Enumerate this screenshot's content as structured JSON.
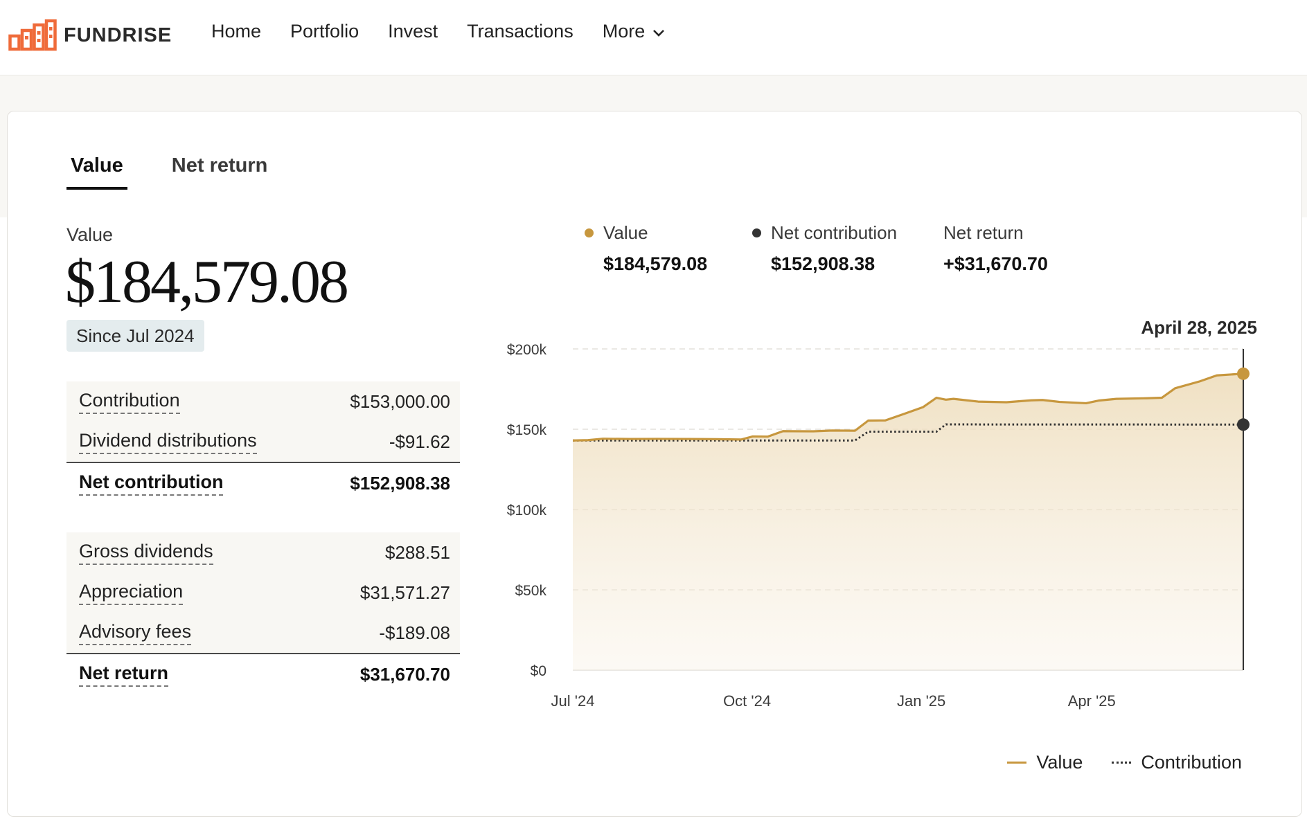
{
  "brand": {
    "name": "FUNDRISE",
    "accent": "#ef6b3a"
  },
  "nav": {
    "items": [
      "Home",
      "Portfolio",
      "Invest",
      "Transactions"
    ],
    "more_label": "More"
  },
  "tabs": [
    {
      "label": "Value",
      "active": true
    },
    {
      "label": "Net return",
      "active": false
    }
  ],
  "summary": {
    "label": "Value",
    "amount": "$184,579.08",
    "since": "Since Jul 2024"
  },
  "breakdown": {
    "contribution": {
      "label": "Contribution",
      "value": "$153,000.00"
    },
    "dividend_distributions": {
      "label": "Dividend distributions",
      "value": "-$91.62"
    },
    "net_contribution": {
      "label": "Net contribution",
      "value": "$152,908.38"
    },
    "gross_dividends": {
      "label": "Gross dividends",
      "value": "$288.51"
    },
    "appreciation": {
      "label": "Appreciation",
      "value": "$31,571.27"
    },
    "advisory_fees": {
      "label": "Advisory fees",
      "value": "-$189.08"
    },
    "net_return": {
      "label": "Net return",
      "value": "$31,670.70"
    }
  },
  "hover_legend": {
    "value": {
      "label": "Value",
      "amount": "$184,579.08",
      "color": "#c7973e"
    },
    "net_contribution": {
      "label": "Net contribution",
      "amount": "$152,908.38",
      "color": "#333333"
    },
    "net_return": {
      "label": "Net return",
      "amount": "+$31,670.70"
    }
  },
  "chart_data": {
    "type": "area",
    "hover_date": "April 28, 2025",
    "y_ticks": [
      "$200k",
      "$150k",
      "$100k",
      "$50k",
      "$0"
    ],
    "y_tick_values": [
      200000,
      150000,
      100000,
      50000,
      0
    ],
    "ylim": [
      0,
      200000
    ],
    "x_ticks": [
      "Jul '24",
      "Oct '24",
      "Jan '25",
      "Apr '25"
    ],
    "x_tick_dates": [
      "2024-07-01",
      "2024-10-01",
      "2025-01-01",
      "2025-04-01"
    ],
    "grid": true,
    "legend_position": "bottom-right",
    "series": [
      {
        "name": "Value",
        "color": "#c7973e",
        "style": "solid-area",
        "points": [
          [
            "2024-07-01",
            143000
          ],
          [
            "2024-07-09",
            143200
          ],
          [
            "2024-07-17",
            144100
          ],
          [
            "2024-07-31",
            143900
          ],
          [
            "2024-08-15",
            144000
          ],
          [
            "2024-08-31",
            143900
          ],
          [
            "2024-09-15",
            143800
          ],
          [
            "2024-09-28",
            143600
          ],
          [
            "2024-10-04",
            145500
          ],
          [
            "2024-10-12",
            145400
          ],
          [
            "2024-10-20",
            148800
          ],
          [
            "2024-11-05",
            148700
          ],
          [
            "2024-11-15",
            149200
          ],
          [
            "2024-11-27",
            149100
          ],
          [
            "2024-12-04",
            155400
          ],
          [
            "2024-12-13",
            155500
          ],
          [
            "2024-12-23",
            159600
          ],
          [
            "2025-01-02",
            163800
          ],
          [
            "2025-01-09",
            169600
          ],
          [
            "2025-01-14",
            168400
          ],
          [
            "2025-01-18",
            168900
          ],
          [
            "2025-01-31",
            167200
          ],
          [
            "2025-02-15",
            166800
          ],
          [
            "2025-02-28",
            168000
          ],
          [
            "2025-03-06",
            168200
          ],
          [
            "2025-03-15",
            167000
          ],
          [
            "2025-03-29",
            166200
          ],
          [
            "2025-04-05",
            167900
          ],
          [
            "2025-04-14",
            168900
          ],
          [
            "2025-04-30",
            169300
          ],
          [
            "2025-05-08",
            169600
          ],
          [
            "2025-05-15",
            175500
          ],
          [
            "2025-05-28",
            179800
          ],
          [
            "2025-06-06",
            183500
          ],
          [
            "2025-06-20",
            184579.08
          ]
        ]
      },
      {
        "name": "Contribution",
        "color": "#333333",
        "style": "dotted",
        "points": [
          [
            "2024-07-01",
            143000
          ],
          [
            "2024-10-20",
            143000
          ],
          [
            "2024-11-27",
            143000
          ],
          [
            "2024-12-04",
            148500
          ],
          [
            "2025-01-09",
            148500
          ],
          [
            "2025-01-14",
            153000
          ],
          [
            "2025-06-20",
            152908.38
          ]
        ]
      }
    ]
  },
  "bottom_legend": {
    "value_label": "Value",
    "contribution_label": "Contribution"
  }
}
